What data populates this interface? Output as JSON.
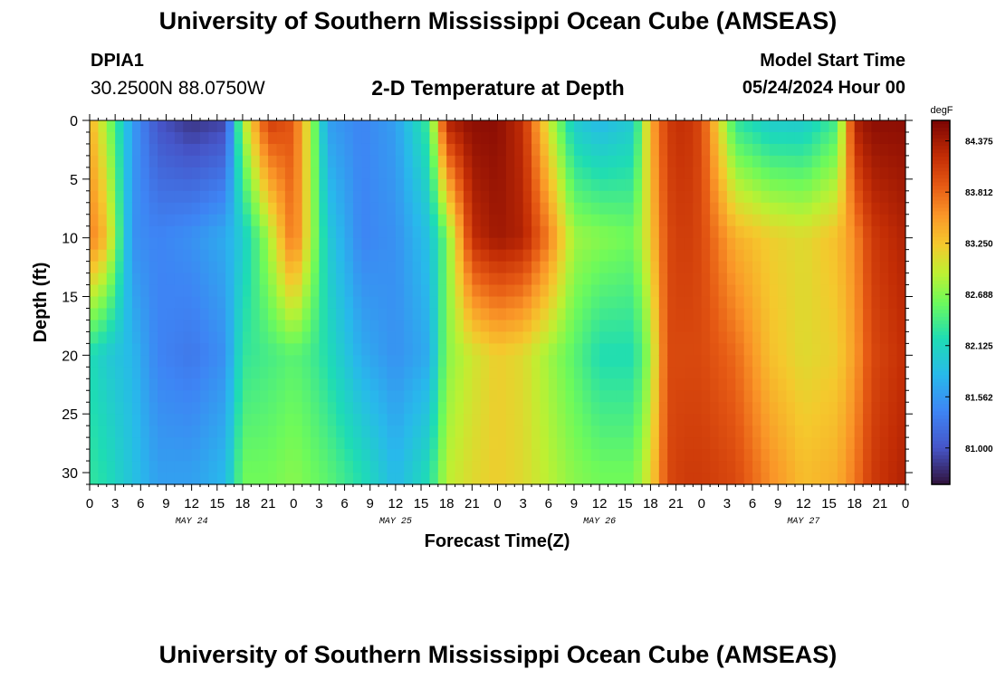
{
  "header": {
    "title": "University of Southern Mississippi Ocean Cube (AMSEAS)",
    "station_id": "DPIA1",
    "coords": "30.2500N  88.0750W",
    "subtitle": "2-D Temperature at Depth",
    "model_start_label": "Model Start Time",
    "model_start_value": "05/24/2024 Hour 00"
  },
  "footer": {
    "title": "University of Southern Mississippi Ocean Cube (AMSEAS)"
  },
  "chart_data": {
    "type": "heatmap",
    "xlabel": "Forecast Time(Z)",
    "ylabel": "Depth (ft)",
    "x_range_hours": [
      0,
      96
    ],
    "y_range_ft": [
      0,
      31
    ],
    "y_inverted": true,
    "x_tick_labels": [
      "0",
      "3",
      "6",
      "9",
      "12",
      "15",
      "18",
      "21",
      "0",
      "3",
      "6",
      "9",
      "12",
      "15",
      "18",
      "21",
      "0",
      "3",
      "6",
      "9",
      "12",
      "15",
      "18",
      "21",
      "0",
      "3",
      "6",
      "9",
      "12",
      "15",
      "18",
      "21",
      "0"
    ],
    "y_ticks": [
      0,
      5,
      10,
      15,
      20,
      25,
      30
    ],
    "date_labels": [
      {
        "label": "MAY 24",
        "hour": 12
      },
      {
        "label": "MAY 25",
        "hour": 36
      },
      {
        "label": "MAY 26",
        "hour": 60
      },
      {
        "label": "MAY 27",
        "hour": 84
      }
    ],
    "colorbar": {
      "units": "degF",
      "min": 80.6,
      "max": 84.6,
      "tick_labels": [
        "84.375",
        "83.812",
        "83.250",
        "82.688",
        "82.125",
        "81.562",
        "81.000"
      ]
    },
    "depth_levels_ft": [
      0,
      10,
      20,
      30
    ],
    "time_hours": [
      0,
      2,
      5,
      8,
      12,
      16,
      18,
      21,
      24,
      26,
      28,
      32,
      36,
      40,
      42,
      45,
      48,
      51,
      54,
      57,
      60,
      64,
      66,
      68,
      70,
      72,
      76,
      80,
      84,
      88,
      90,
      92,
      96
    ],
    "temperature_degF": [
      [
        83.4,
        82.8,
        81.6,
        81.0,
        80.8,
        80.9,
        82.8,
        84.1,
        83.9,
        82.9,
        81.6,
        81.4,
        81.6,
        82.4,
        84.3,
        84.5,
        84.5,
        84.2,
        83.0,
        82.0,
        81.8,
        82.0,
        83.4,
        84.1,
        84.2,
        84.0,
        82.3,
        82.0,
        82.0,
        82.4,
        84.3,
        84.5,
        84.5
      ],
      [
        83.7,
        83.3,
        81.5,
        81.4,
        81.5,
        81.7,
        82.0,
        82.8,
        83.8,
        82.9,
        82.0,
        81.4,
        81.5,
        81.9,
        82.6,
        84.2,
        84.4,
        84.3,
        83.7,
        82.8,
        82.7,
        82.6,
        83.2,
        84.0,
        84.1,
        84.0,
        83.4,
        83.2,
        83.1,
        83.3,
        83.6,
        84.1,
        84.3
      ],
      [
        82.2,
        82.0,
        81.8,
        81.4,
        81.3,
        81.5,
        82.3,
        82.4,
        82.5,
        82.4,
        82.2,
        81.7,
        81.5,
        81.7,
        82.7,
        83.0,
        83.2,
        83.1,
        82.8,
        82.5,
        82.2,
        82.2,
        82.8,
        84.0,
        84.0,
        84.0,
        83.8,
        83.3,
        83.1,
        83.2,
        83.5,
        84.0,
        84.2
      ],
      [
        82.3,
        82.2,
        81.9,
        81.6,
        81.6,
        81.8,
        82.6,
        82.6,
        82.7,
        82.6,
        82.5,
        82.2,
        81.8,
        82.2,
        82.9,
        83.1,
        83.2,
        83.1,
        82.9,
        82.7,
        82.6,
        82.6,
        83.1,
        84.0,
        84.1,
        84.1,
        84.0,
        83.6,
        83.3,
        83.4,
        83.7,
        84.1,
        84.3
      ]
    ]
  }
}
